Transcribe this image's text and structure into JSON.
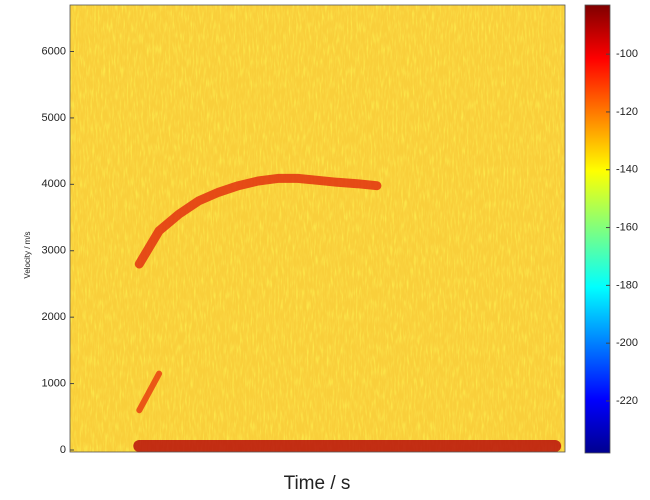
{
  "chart_data": {
    "type": "spectrogram",
    "ylabel": "Velocity / m/s",
    "xlabel": "Time / s",
    "categories": [
      null,
      null,
      null,
      null,
      null,
      null,
      null,
      null,
      null,
      null,
      null,
      null,
      null,
      null,
      null,
      null,
      null,
      null,
      null,
      null,
      null,
      null,
      null,
      null,
      null
    ],
    "series": [
      {
        "color": "#e2330f",
        "values": [
          null,
          null,
          null,
          2800,
          3300,
          3550,
          3750,
          3880,
          3980,
          4050,
          4090,
          4090,
          4060,
          4030,
          4010,
          3980,
          null,
          null,
          null,
          null,
          null,
          null,
          null,
          null,
          null
        ]
      },
      {
        "color": "#e8410f",
        "values": [
          null,
          null,
          null,
          600,
          1150,
          null,
          null,
          null,
          null,
          null,
          null,
          null,
          null,
          null,
          null,
          null,
          null,
          null,
          null,
          null,
          null,
          null,
          null,
          null,
          null
        ]
      },
      {
        "color": "#b8100c",
        "values": [
          null,
          null,
          null,
          60,
          60,
          60,
          60,
          60,
          60,
          60,
          60,
          60,
          60,
          60,
          60,
          60,
          60,
          60,
          60,
          60,
          60,
          60,
          60,
          60,
          60
        ]
      }
    ],
    "ylim": [
      -30,
      6700
    ],
    "yticks": [
      0,
      1000,
      2000,
      3000,
      4000,
      5000,
      6000
    ],
    "clim": [
      -238,
      -83
    ],
    "cticks": [
      -100,
      -120,
      -140,
      -160,
      -180,
      -200,
      -220
    ]
  }
}
